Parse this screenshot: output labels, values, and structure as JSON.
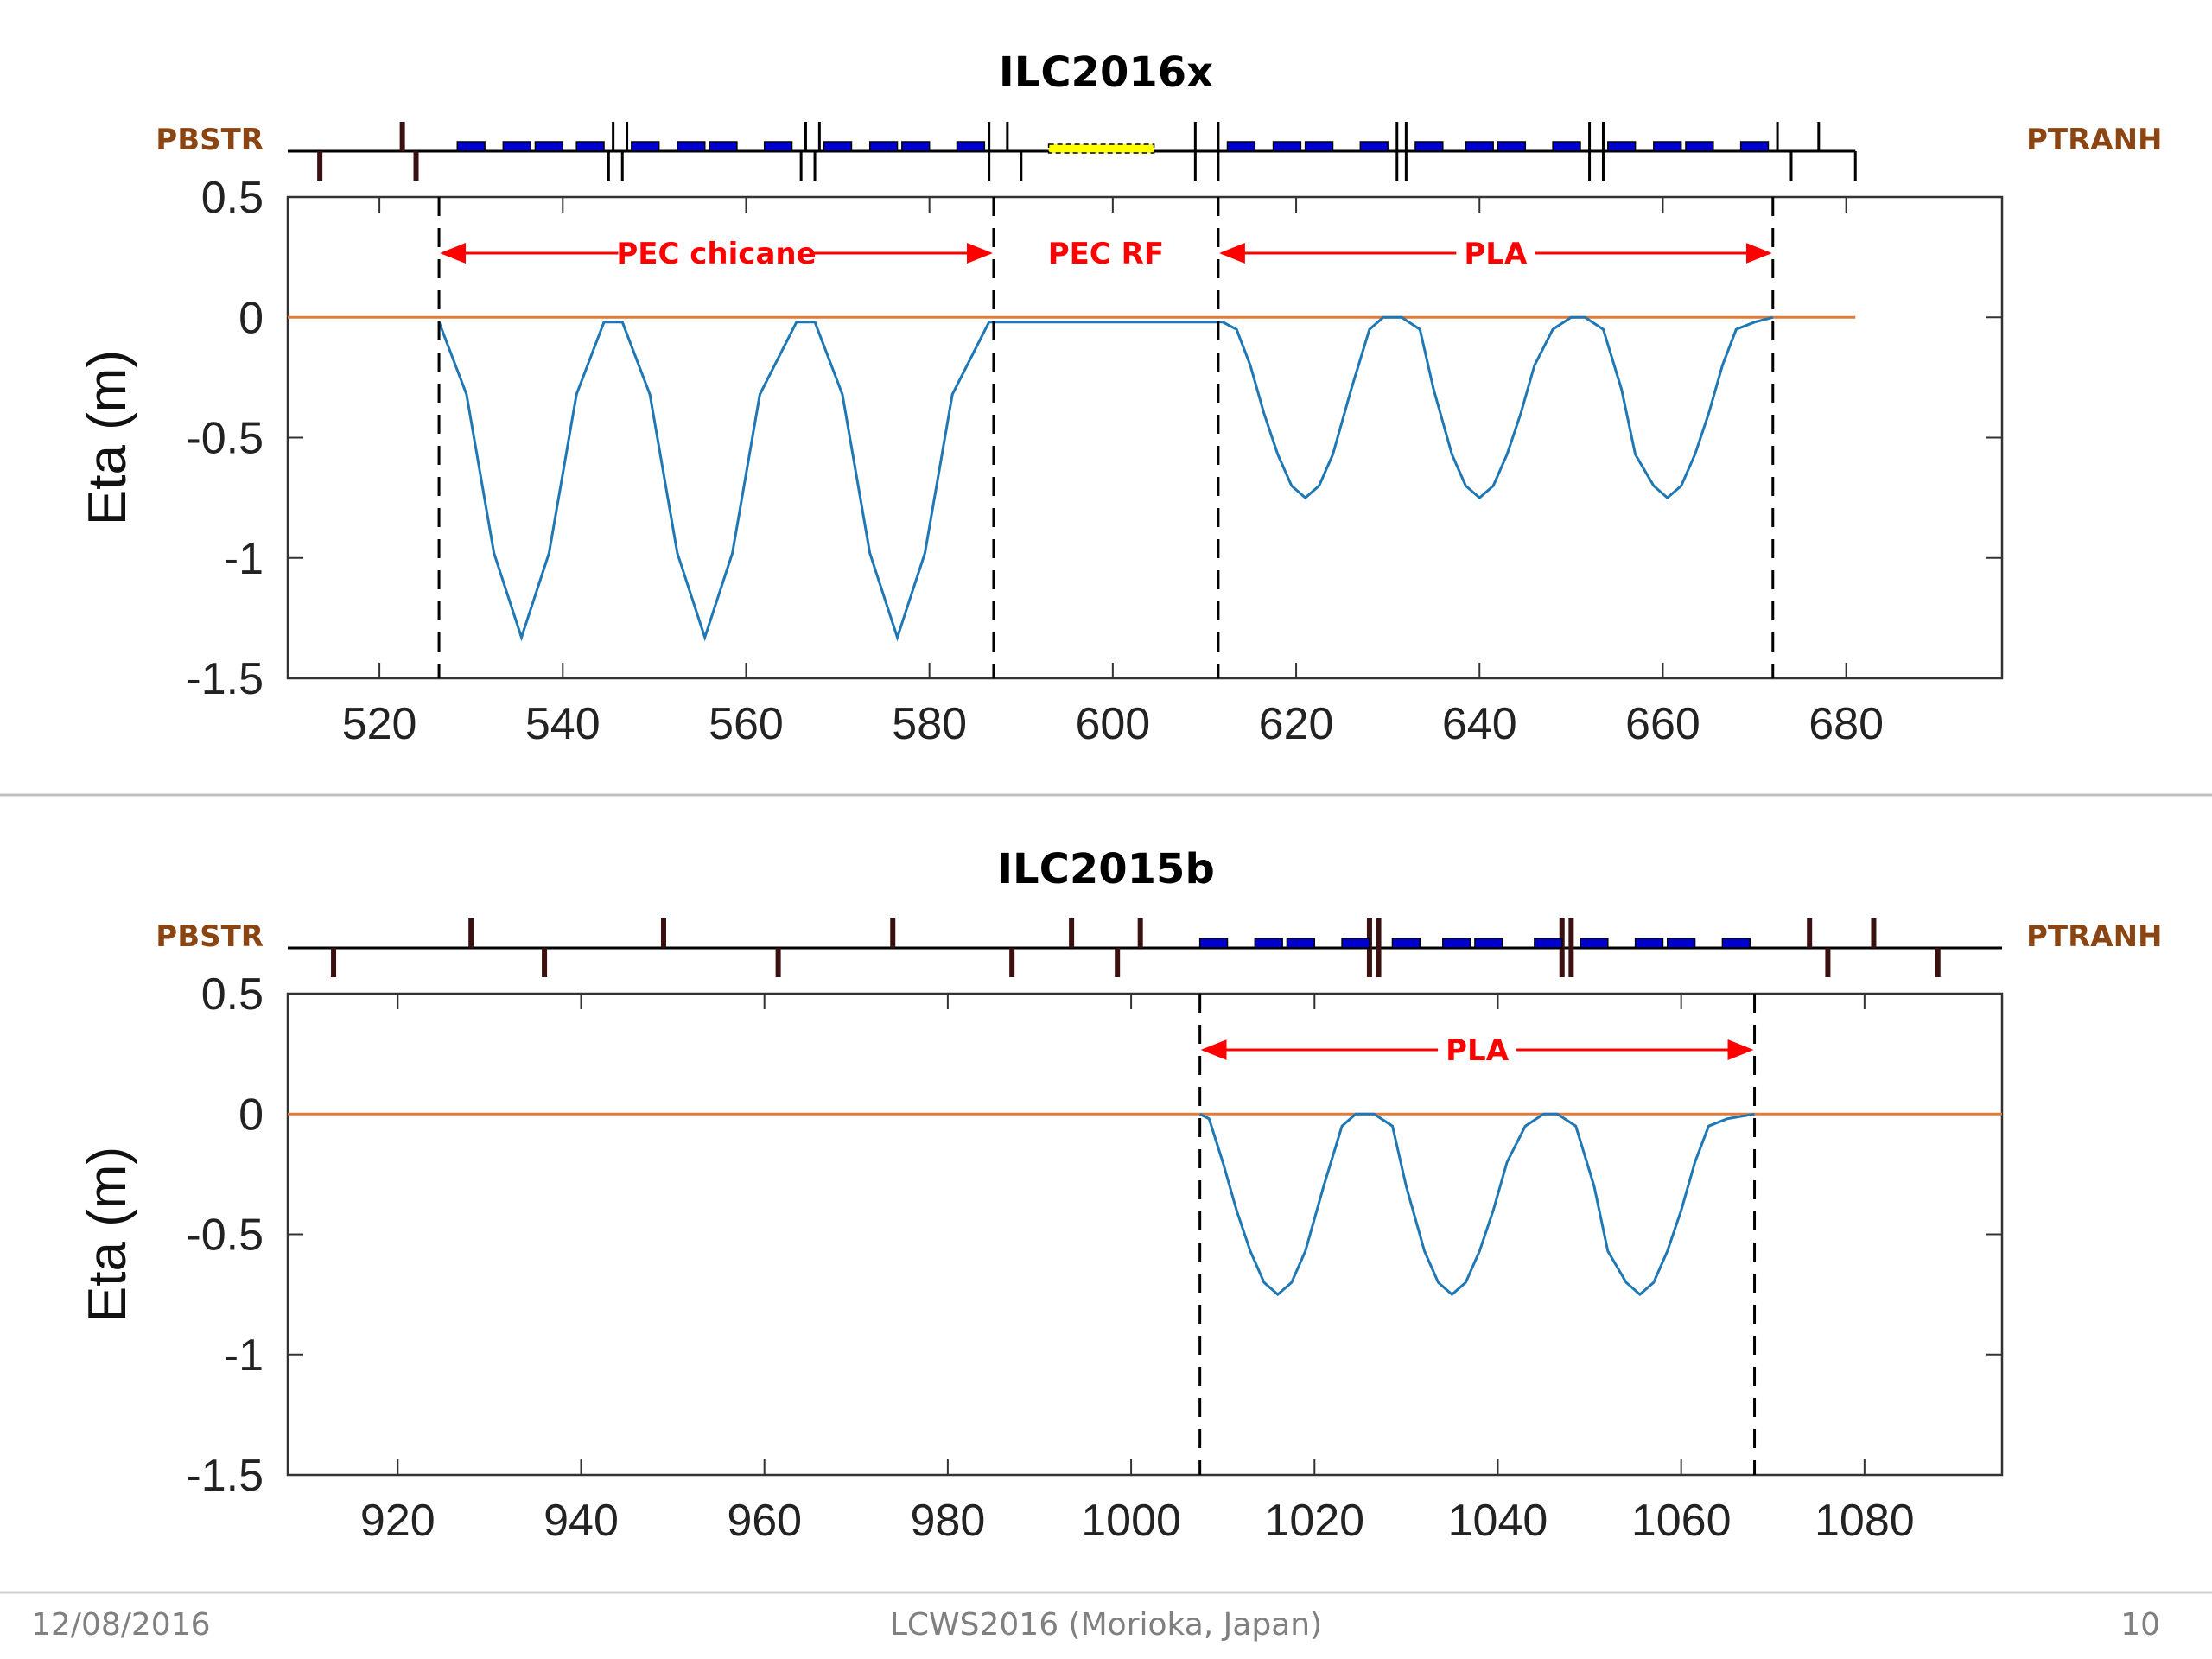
{
  "footer": {
    "date": "12/08/2016",
    "conference": "LCWS2016 (Morioka, Japan)",
    "page_number": "10"
  },
  "colors": {
    "eta_curve": "#1f77b4",
    "zero_line": "#e07b39",
    "region_arrow": "#ff0000",
    "element_label": "#8B4513",
    "dipole": "#0000cc",
    "rf_cavity": "#ffff00",
    "marker": "#3a1010"
  },
  "chart_data": [
    {
      "type": "line",
      "title": "ILC2016x",
      "xlabel": "",
      "ylabel": "Eta (m)",
      "xlim": [
        510,
        697
      ],
      "ylim": [
        -1.5,
        0.5
      ],
      "xticks": [
        520,
        540,
        560,
        580,
        600,
        620,
        640,
        660,
        680
      ],
      "yticks": [
        0.5,
        0,
        -0.5,
        -1,
        -1.5
      ],
      "ytick_labels": [
        "0.5",
        "0",
        "-0.5",
        "-1",
        "-1.5"
      ],
      "beamline_start_label": "PBSTR",
      "beamline_end_label": "PTRANH",
      "beamline_x_range": [
        510,
        681
      ],
      "reference_line": {
        "y": 0,
        "x_range": [
          510,
          681
        ]
      },
      "boundaries_x": [
        526.5,
        587,
        611.5,
        672
      ],
      "regions": [
        {
          "label": "PEC chicane",
          "x_start": 526.5,
          "x_end": 587
        },
        {
          "label": "PEC RF",
          "x_start": 587,
          "x_end": 611.5
        },
        {
          "label": "PLA",
          "x_start": 611.5,
          "x_end": 672
        }
      ],
      "series": [
        {
          "x": [
            526.5,
            529.5,
            532.5,
            535.5,
            538.5,
            541.5,
            544.5,
            546.5,
            549.5,
            552.5,
            555.5,
            558.5,
            561.5,
            565.5,
            567.5,
            570.5,
            573.5,
            576.5,
            579.5,
            582.5,
            586.5,
            612,
            613.5,
            615,
            616.5,
            618,
            619.5,
            621,
            622.5,
            624,
            626,
            628,
            629.5,
            631.5,
            633.5,
            635,
            637,
            638.5,
            640,
            641.5,
            643,
            644.5,
            646,
            648,
            650,
            651.5,
            653.5,
            655.5,
            657,
            659,
            660.5,
            662,
            663.5,
            665,
            666.5,
            668,
            670,
            672
          ],
          "y": [
            -0.02,
            -0.32,
            -0.98,
            -1.33,
            -0.98,
            -0.32,
            -0.02,
            -0.02,
            -0.32,
            -0.98,
            -1.33,
            -0.98,
            -0.32,
            -0.02,
            -0.02,
            -0.32,
            -0.98,
            -1.33,
            -0.98,
            -0.32,
            -0.02,
            -0.02,
            -0.05,
            -0.2,
            -0.4,
            -0.57,
            -0.7,
            -0.75,
            -0.7,
            -0.57,
            -0.3,
            -0.05,
            0,
            0,
            -0.05,
            -0.3,
            -0.57,
            -0.7,
            -0.75,
            -0.7,
            -0.57,
            -0.4,
            -0.2,
            -0.05,
            0,
            0,
            -0.05,
            -0.3,
            -0.57,
            -0.7,
            -0.75,
            -0.7,
            -0.57,
            -0.4,
            -0.2,
            -0.05,
            -0.02,
            0
          ]
        }
      ],
      "lattice": {
        "markers_up": [
          522.5,
          545.5,
          547,
          566.5,
          568,
          586.5,
          588.5,
          609,
          611.5,
          631,
          632,
          652,
          653.5,
          672.5,
          677
        ],
        "markers_down": [
          513.5,
          524,
          545,
          546.5,
          566,
          567.5,
          586.5,
          590,
          609,
          611.5,
          631,
          632,
          652,
          653.5,
          674,
          681
        ],
        "dipoles": [
          [
            528.5,
            531.5
          ],
          [
            533.5,
            536.5
          ],
          [
            537,
            540
          ],
          [
            541.5,
            544.5
          ],
          [
            547.5,
            550.5
          ],
          [
            552.5,
            555.5
          ],
          [
            556,
            559
          ],
          [
            562,
            565
          ],
          [
            568.5,
            571.5
          ],
          [
            573.5,
            576.5
          ],
          [
            577,
            580
          ],
          [
            583,
            586
          ],
          [
            612.5,
            615.5
          ],
          [
            617.5,
            620.5
          ],
          [
            621,
            624
          ],
          [
            627,
            630
          ],
          [
            633,
            636
          ],
          [
            638.5,
            641.5
          ],
          [
            642,
            645
          ],
          [
            648,
            651
          ],
          [
            654,
            657
          ],
          [
            659,
            662
          ],
          [
            662.5,
            665.5
          ],
          [
            668.5,
            671.5
          ]
        ],
        "rf": [
          [
            593,
            604.5
          ]
        ]
      }
    },
    {
      "type": "line",
      "title": "ILC2015b",
      "xlabel": "",
      "ylabel": "Eta (m)",
      "xlim": [
        908,
        1095
      ],
      "ylim": [
        -1.5,
        0.5
      ],
      "xticks": [
        920,
        940,
        960,
        980,
        1000,
        1020,
        1040,
        1060,
        1080
      ],
      "yticks": [
        0.5,
        0,
        -0.5,
        -1,
        -1.5
      ],
      "ytick_labels": [
        "0.5",
        "0",
        "-0.5",
        "-1",
        "-1.5"
      ],
      "beamline_start_label": "PBSTR",
      "beamline_end_label": "PTRANH",
      "beamline_x_range": [
        908,
        1095
      ],
      "reference_line": {
        "y": 0,
        "x_range": [
          908,
          1095
        ]
      },
      "boundaries_x": [
        1007.5,
        1068
      ],
      "regions": [
        {
          "label": "PLA",
          "x_start": 1007.5,
          "x_end": 1068
        }
      ],
      "series": [
        {
          "x": [
            1007.5,
            1008.5,
            1010,
            1011.5,
            1013,
            1014.5,
            1016,
            1017.5,
            1019,
            1021,
            1023,
            1024.5,
            1026.5,
            1028.5,
            1030,
            1032,
            1033.5,
            1035,
            1036.5,
            1038,
            1039.5,
            1041,
            1043,
            1045,
            1046.5,
            1048.5,
            1050.5,
            1052,
            1054,
            1055.5,
            1057,
            1058.5,
            1060,
            1061.5,
            1063,
            1065,
            1068
          ],
          "y": [
            0,
            -0.02,
            -0.2,
            -0.4,
            -0.57,
            -0.7,
            -0.75,
            -0.7,
            -0.57,
            -0.3,
            -0.05,
            0,
            0,
            -0.05,
            -0.3,
            -0.57,
            -0.7,
            -0.75,
            -0.7,
            -0.57,
            -0.4,
            -0.2,
            -0.05,
            0,
            0,
            -0.05,
            -0.3,
            -0.57,
            -0.7,
            -0.75,
            -0.7,
            -0.57,
            -0.4,
            -0.2,
            -0.05,
            -0.02,
            0
          ]
        }
      ],
      "lattice": {
        "markers_up": [
          928,
          949,
          974,
          993.5,
          1001,
          1026,
          1027,
          1047,
          1048,
          1074,
          1081
        ],
        "markers_down": [
          913,
          936,
          961.5,
          987,
          998.5,
          1026,
          1027,
          1047,
          1048,
          1076,
          1088
        ],
        "dipoles": [
          [
            1007.5,
            1010.5
          ],
          [
            1013.5,
            1016.5
          ],
          [
            1017,
            1020
          ],
          [
            1023,
            1026
          ],
          [
            1028.5,
            1031.5
          ],
          [
            1034,
            1037
          ],
          [
            1037.5,
            1040.5
          ],
          [
            1044,
            1047
          ],
          [
            1049,
            1052
          ],
          [
            1055,
            1058
          ],
          [
            1058.5,
            1061.5
          ],
          [
            1064.5,
            1067.5
          ]
        ],
        "rf": []
      }
    }
  ]
}
